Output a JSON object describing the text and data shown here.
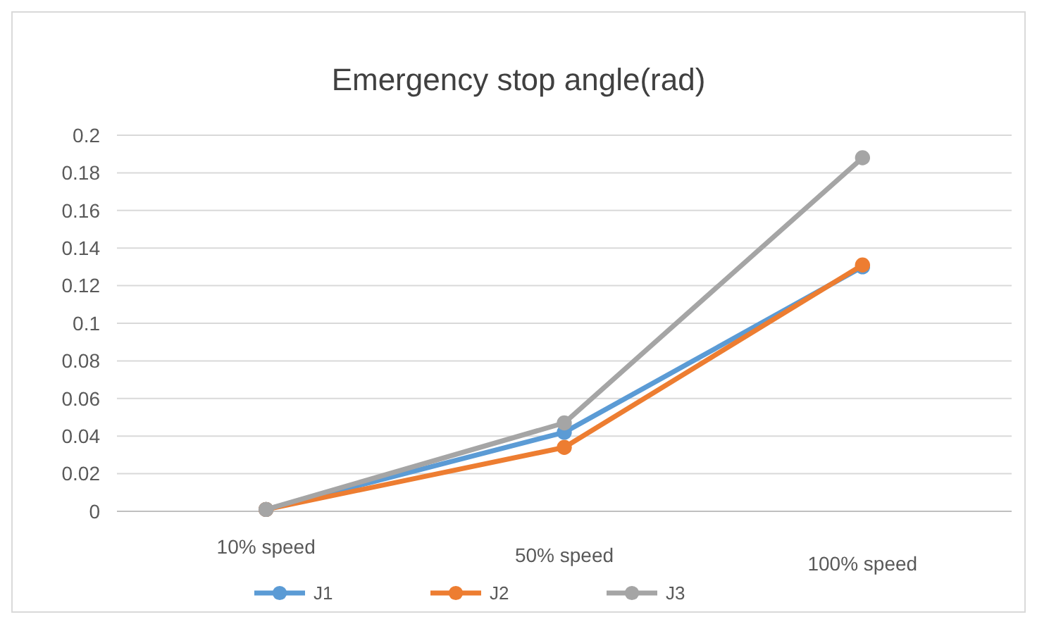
{
  "chart_data": {
    "type": "line",
    "title": "Emergency stop angle(rad)",
    "categories": [
      "10% speed",
      "50% speed",
      "100% speed"
    ],
    "series": [
      {
        "name": "J1",
        "color": "#5b9bd5",
        "values": [
          0.001,
          0.042,
          0.13
        ]
      },
      {
        "name": "J2",
        "color": "#ed7d31",
        "values": [
          0.001,
          0.034,
          0.131
        ]
      },
      {
        "name": "J3",
        "color": "#a5a5a5",
        "values": [
          0.001,
          0.047,
          0.188
        ]
      }
    ],
    "ylim": [
      0,
      0.2
    ],
    "yticks": [
      0,
      0.02,
      0.04,
      0.06,
      0.08,
      0.1,
      0.12,
      0.14,
      0.16,
      0.18,
      0.2
    ],
    "grid": "y",
    "legend": "bottom",
    "marker": "circle"
  }
}
